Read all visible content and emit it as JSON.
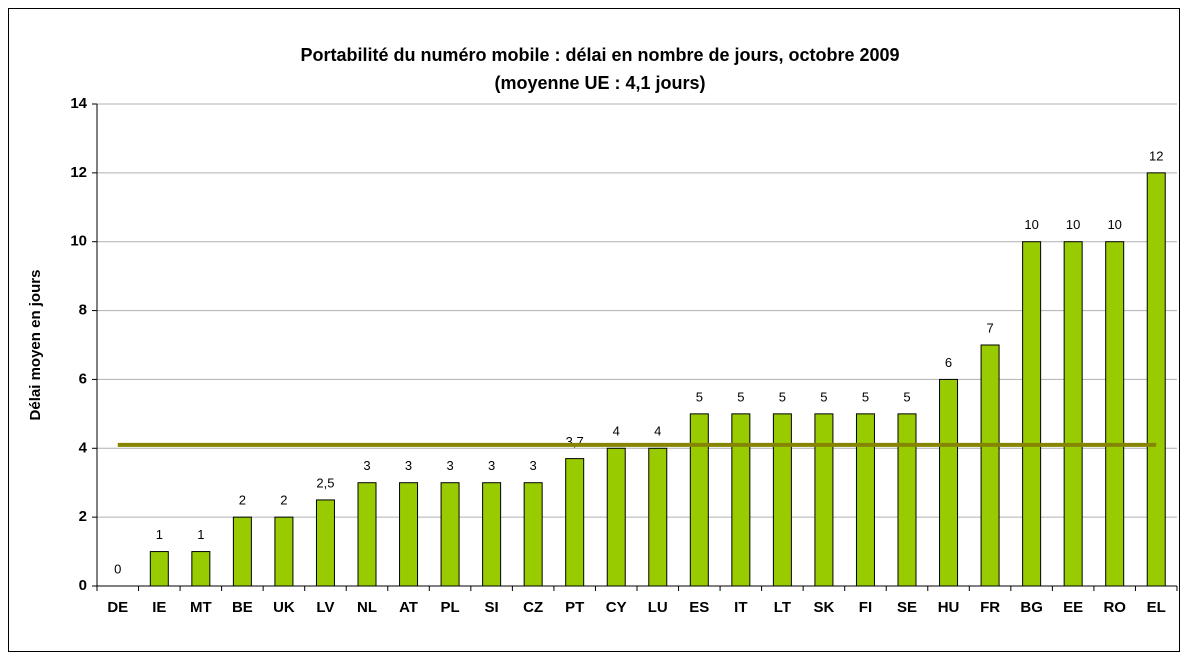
{
  "chart_data": {
    "type": "bar",
    "title": "Portabilité du numéro mobile : délai en nombre de jours, octobre 2009",
    "subtitle": "(moyenne UE : 4,1 jours)",
    "y_label": "Délai moyen en jours",
    "categories": [
      "DE",
      "IE",
      "MT",
      "BE",
      "UK",
      "LV",
      "NL",
      "AT",
      "PL",
      "SI",
      "CZ",
      "PT",
      "CY",
      "LU",
      "ES",
      "IT",
      "LT",
      "SK",
      "FI",
      "SE",
      "HU",
      "FR",
      "BG",
      "EE",
      "RO",
      "EL"
    ],
    "values": [
      0,
      1,
      1,
      2,
      2,
      2.5,
      3,
      3,
      3,
      3,
      3,
      3.7,
      4,
      4,
      5,
      5,
      5,
      5,
      5,
      5,
      6,
      7,
      10,
      10,
      10,
      12
    ],
    "value_labels": [
      "0",
      "1",
      "1",
      "2",
      "2",
      "2,5",
      "3",
      "3",
      "3",
      "3",
      "3",
      "3,7",
      "4",
      "4",
      "5",
      "5",
      "5",
      "5",
      "5",
      "5",
      "6",
      "7",
      "10",
      "10",
      "10",
      "12"
    ],
    "color": "#99cc00",
    "average": 4.1,
    "average_color": "#858500",
    "ylim": [
      0,
      14
    ],
    "yticks": [
      0,
      2,
      4,
      6,
      8,
      10,
      12,
      14
    ],
    "grid": true
  }
}
